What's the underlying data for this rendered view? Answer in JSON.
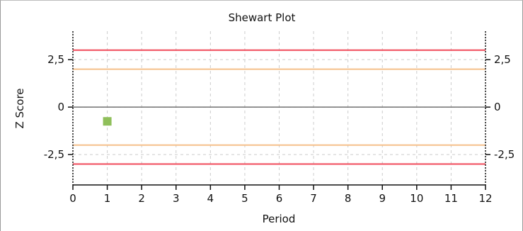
{
  "chart_data": {
    "type": "scatter",
    "title": "Shewart Plot",
    "xlabel": "Period",
    "ylabel": "Z Score",
    "xlim": [
      0,
      12
    ],
    "ylim": [
      -4.1,
      4.0
    ],
    "x_ticks": [
      0,
      1,
      2,
      3,
      4,
      5,
      6,
      7,
      8,
      9,
      10,
      11,
      12
    ],
    "x_tick_labels": [
      "0",
      "1",
      "2",
      "3",
      "4",
      "5",
      "6",
      "7",
      "8",
      "9",
      "10",
      "11",
      "12"
    ],
    "y_ticks": [
      2.5,
      0,
      -2.5
    ],
    "y_tick_labels": [
      "2,5",
      "0",
      "-2,5"
    ],
    "right_y_tick_labels": [
      "2,5",
      "0",
      "-2,5"
    ],
    "grid": true,
    "points": [
      {
        "x": 1,
        "y": -0.75
      }
    ],
    "reference_lines": [
      {
        "y": 3,
        "color": "#f04a5a"
      },
      {
        "y": 2,
        "color": "#f5c08a"
      },
      {
        "y": 0,
        "color": "#555555"
      },
      {
        "y": -2,
        "color": "#f5c08a"
      },
      {
        "y": -3,
        "color": "#f04a5a"
      }
    ],
    "colors": {
      "point": "#8fbf5a",
      "grid": "#cccccc",
      "axis": "#111111"
    }
  }
}
